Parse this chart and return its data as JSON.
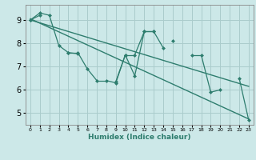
{
  "xlabel": "Humidex (Indice chaleur)",
  "ylabel": "",
  "bg_color": "#cce8e8",
  "grid_color": "#aacccc",
  "line_color": "#2e7d6e",
  "x_values": [
    0,
    1,
    2,
    3,
    4,
    5,
    6,
    7,
    8,
    9,
    10,
    11,
    12,
    13,
    14,
    15,
    16,
    17,
    18,
    19,
    20,
    21,
    22,
    23
  ],
  "series1": [
    9.0,
    9.3,
    9.2,
    7.9,
    7.6,
    7.6,
    6.9,
    6.4,
    6.4,
    6.3,
    7.5,
    6.6,
    8.5,
    8.5,
    7.8,
    null,
    null,
    7.5,
    7.5,
    5.9,
    6.0,
    null,
    6.5,
    4.7
  ],
  "series2": [
    9.0,
    9.2,
    null,
    null,
    7.6,
    7.55,
    null,
    null,
    null,
    6.35,
    7.5,
    7.5,
    8.5,
    8.5,
    null,
    8.1,
    null,
    null,
    null,
    null,
    null,
    null,
    null,
    null
  ],
  "trend1_x": [
    0,
    23
  ],
  "trend1_y": [
    9.05,
    4.75
  ],
  "trend2_x": [
    0,
    23
  ],
  "trend2_y": [
    9.0,
    6.15
  ],
  "ylim": [
    4.5,
    9.65
  ],
  "xlim": [
    -0.5,
    23.5
  ],
  "yticks": [
    5,
    6,
    7,
    8,
    9
  ],
  "xticks": [
    0,
    1,
    2,
    3,
    4,
    5,
    6,
    7,
    8,
    9,
    10,
    11,
    12,
    13,
    14,
    15,
    16,
    17,
    18,
    19,
    20,
    21,
    22,
    23
  ]
}
